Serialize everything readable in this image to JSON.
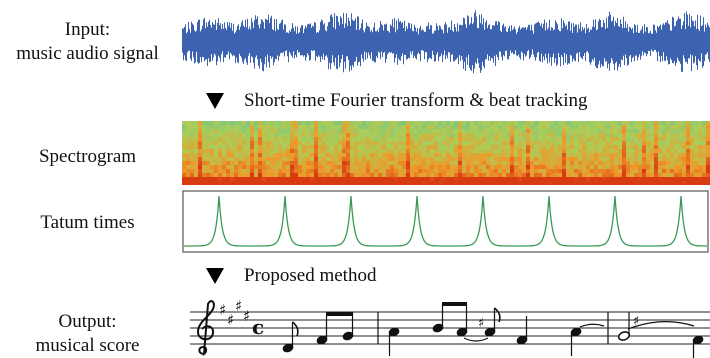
{
  "rows": {
    "input": {
      "label_line1": "Input:",
      "label_line2": "music audio signal"
    },
    "step1": {
      "text": "Short-time Fourier transform & beat tracking"
    },
    "spectrogram": {
      "label": "Spectrogram"
    },
    "tatum": {
      "label": "Tatum times",
      "peak_count": 8,
      "line_color": "#3a9a52"
    },
    "step2": {
      "text": "Proposed method"
    },
    "output": {
      "label_line1": "Output:",
      "label_line2": "musical score"
    }
  },
  "colors": {
    "waveform": "#3d63b0",
    "spectrogram_low": "#d83a12",
    "spectrogram_mid": "#ee9a2a",
    "spectrogram_high": "#a9cf5a",
    "spectrogram_top": "#6fc08a"
  },
  "score": {
    "time_signature": "c",
    "sharps": 4
  }
}
